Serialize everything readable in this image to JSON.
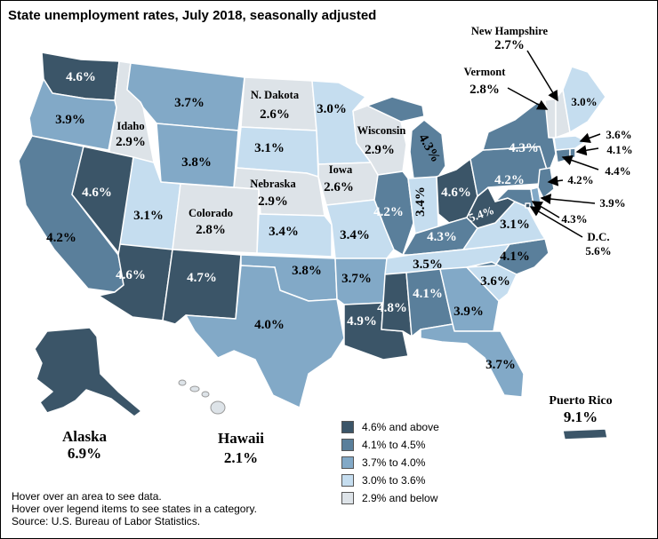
{
  "title": "State unemployment rates, July 2018, seasonally adjusted",
  "legend": [
    {
      "label": "4.6% and above",
      "color": "#3b5568"
    },
    {
      "label": "4.1% to 4.5%",
      "color": "#5a7f9b"
    },
    {
      "label": "3.7% to 4.0%",
      "color": "#82a9c7"
    },
    {
      "label": "3.0% to 3.6%",
      "color": "#c5ddef"
    },
    {
      "label": "2.9% and below",
      "color": "#dde3e8"
    }
  ],
  "notes": [
    "Hover over an area to see data.",
    "Hover over legend items to see states in a category.",
    "Source: U.S. Bureau of Labor Statistics."
  ],
  "states": {
    "WA": {
      "rate": "4.6%"
    },
    "OR": {
      "rate": "3.9%"
    },
    "CA": {
      "rate": "4.2%"
    },
    "ID": {
      "name": "Idaho",
      "rate": "2.9%"
    },
    "NV": {
      "rate": "4.6%"
    },
    "MT": {
      "rate": "3.7%"
    },
    "WY": {
      "rate": "3.8%"
    },
    "UT": {
      "rate": "3.1%"
    },
    "CO": {
      "name": "Colorado",
      "rate": "2.8%"
    },
    "AZ": {
      "rate": "4.6%"
    },
    "NM": {
      "rate": "4.7%"
    },
    "ND": {
      "name": "N. Dakota",
      "rate": "2.6%"
    },
    "SD": {
      "rate": "3.1%"
    },
    "NE": {
      "name": "Nebraska",
      "rate": "2.9%"
    },
    "KS": {
      "rate": "3.4%"
    },
    "OK": {
      "rate": "3.8%"
    },
    "TX": {
      "rate": "4.0%"
    },
    "MN": {
      "rate": "3.0%"
    },
    "IA": {
      "name": "Iowa",
      "rate": "2.6%"
    },
    "MO": {
      "rate": "3.4%"
    },
    "AR": {
      "rate": "3.7%"
    },
    "LA": {
      "rate": "4.9%"
    },
    "WI": {
      "name": "Wisconsin",
      "rate": "2.9%"
    },
    "IL": {
      "rate": "4.2%"
    },
    "MI": {
      "rate": "4.3%"
    },
    "IN": {
      "rate": "3.4%"
    },
    "OH": {
      "rate": "4.6%"
    },
    "KY": {
      "rate": "4.3%"
    },
    "TN": {
      "rate": "3.5%"
    },
    "MS": {
      "rate": "4.8%"
    },
    "AL": {
      "rate": "4.1%"
    },
    "GA": {
      "rate": "3.9%"
    },
    "FL": {
      "rate": "3.7%"
    },
    "SC": {
      "rate": "3.6%"
    },
    "NC": {
      "rate": "4.1%"
    },
    "VA": {
      "rate": "3.1%"
    },
    "WV": {
      "rate": "5.4%"
    },
    "PA": {
      "rate": "4.2%"
    },
    "NY": {
      "rate": "4.3%"
    },
    "ME": {
      "rate": "3.0%"
    },
    "VT": {
      "name": "Vermont",
      "rate": "2.8%"
    },
    "NH": {
      "name": "New Hampshire",
      "rate": "2.7%"
    },
    "MA": {
      "rate": "3.6%"
    },
    "RI": {
      "rate": "4.1%"
    },
    "CT": {
      "rate": "4.4%"
    },
    "NJ": {
      "rate": "4.2%"
    },
    "DE": {
      "rate": "3.9%"
    },
    "MD": {
      "rate": "4.3%"
    },
    "DC": {
      "name": "D.C.",
      "rate": "5.6%"
    },
    "AK": {
      "name": "Alaska",
      "rate": "6.9%"
    },
    "HI": {
      "name": "Hawaii",
      "rate": "2.1%"
    },
    "PR": {
      "name": "Puerto Rico",
      "rate": "9.1%"
    }
  }
}
